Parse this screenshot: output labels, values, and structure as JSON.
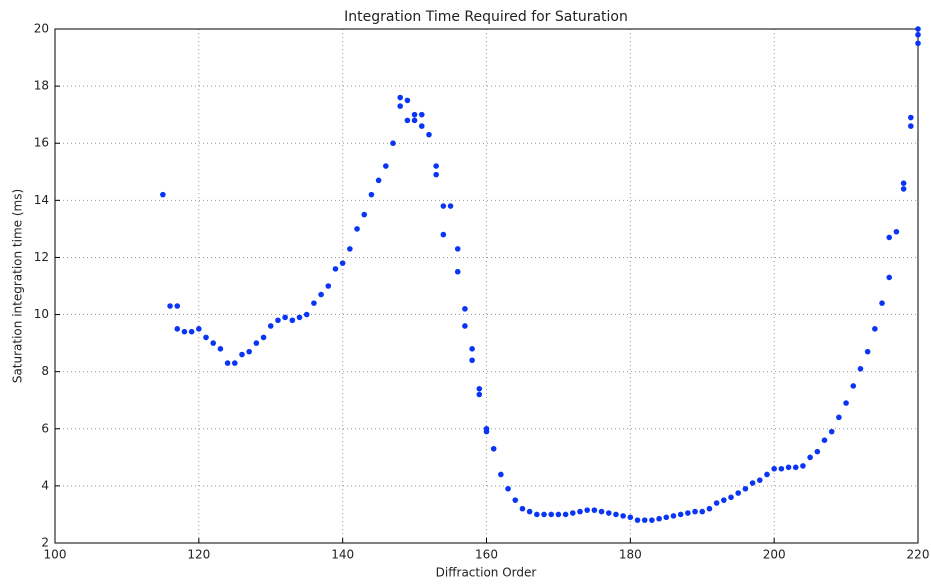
{
  "chart_data": {
    "type": "scatter",
    "title": "Integration Time Required for Saturation",
    "x_label": "Diffraction Order",
    "y_label": "Saturation integration time (ms)",
    "color": "#0a35f5",
    "grid": true,
    "xlim": [
      100,
      220
    ],
    "xticks": [
      100,
      120,
      140,
      160,
      180,
      200,
      220
    ],
    "ylim": [
      2,
      20
    ],
    "yticks": [
      2,
      4,
      6,
      8,
      10,
      12,
      14,
      16,
      18,
      20
    ],
    "x": [
      115,
      116,
      117,
      117,
      118,
      119,
      120,
      121,
      122,
      123,
      124,
      125,
      126,
      127,
      128,
      129,
      130,
      131,
      132,
      133,
      134,
      135,
      136,
      137,
      138,
      139,
      140,
      141,
      142,
      143,
      144,
      145,
      146,
      147,
      148,
      149,
      150,
      151,
      152,
      153,
      154,
      155,
      156,
      157,
      158,
      159,
      160,
      161,
      162,
      163,
      164,
      165,
      166,
      167,
      168,
      169,
      170,
      171,
      172,
      173,
      174,
      175,
      176,
      177,
      178,
      179,
      180,
      181,
      182,
      183,
      184,
      185,
      186,
      187,
      188,
      189,
      190,
      191,
      192,
      193,
      194,
      195,
      196,
      197,
      198,
      199,
      200,
      201,
      202,
      203,
      204,
      205,
      206,
      207,
      208,
      209,
      210,
      211,
      212,
      213,
      214,
      215,
      216,
      217,
      218,
      219,
      220,
      148,
      149,
      150,
      151,
      153,
      154,
      156,
      157,
      158,
      159,
      160,
      216,
      218,
      219,
      220,
      220
    ],
    "values": [
      14.2,
      10.3,
      10.3,
      9.5,
      9.4,
      9.4,
      9.5,
      9.2,
      9.0,
      8.8,
      8.3,
      8.3,
      8.6,
      8.7,
      9.0,
      9.2,
      9.6,
      9.8,
      9.9,
      9.8,
      9.9,
      10.0,
      10.4,
      10.7,
      11.0,
      11.6,
      11.8,
      12.3,
      13.0,
      13.5,
      14.2,
      14.7,
      15.2,
      16.0,
      17.6,
      17.5,
      17.0,
      17.0,
      16.3,
      15.2,
      13.8,
      13.8,
      12.3,
      10.2,
      8.8,
      7.4,
      6.0,
      5.3,
      4.4,
      3.9,
      3.5,
      3.2,
      3.1,
      3.0,
      3.0,
      3.0,
      3.0,
      3.0,
      3.05,
      3.1,
      3.15,
      3.15,
      3.1,
      3.05,
      3.0,
      2.95,
      2.9,
      2.8,
      2.8,
      2.8,
      2.85,
      2.9,
      2.95,
      3.0,
      3.05,
      3.1,
      3.1,
      3.2,
      3.4,
      3.5,
      3.6,
      3.75,
      3.9,
      4.1,
      4.2,
      4.4,
      4.6,
      4.6,
      4.65,
      4.65,
      4.7,
      5.0,
      5.2,
      5.6,
      5.9,
      6.4,
      6.9,
      7.5,
      8.1,
      8.7,
      9.5,
      10.4,
      11.3,
      12.9,
      14.4,
      16.9,
      19.8,
      17.3,
      16.8,
      16.8,
      16.6,
      14.9,
      12.8,
      11.5,
      9.6,
      8.4,
      7.2,
      5.9,
      12.7,
      14.6,
      16.6,
      19.5,
      20.0
    ]
  }
}
